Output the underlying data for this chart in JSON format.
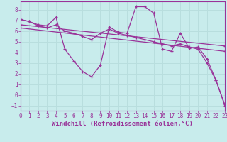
{
  "background_color": "#c8ecec",
  "line_color": "#993399",
  "grid_color": "#b8dede",
  "xlabel": "Windchill (Refroidissement éolien,°C)",
  "xlim": [
    0,
    23
  ],
  "ylim": [
    -1.5,
    8.8
  ],
  "yticks": [
    -1,
    0,
    1,
    2,
    3,
    4,
    5,
    6,
    7,
    8
  ],
  "xticks": [
    0,
    1,
    2,
    3,
    4,
    5,
    6,
    7,
    8,
    9,
    10,
    11,
    12,
    13,
    14,
    15,
    16,
    17,
    18,
    19,
    20,
    21,
    22,
    23
  ],
  "series1_x": [
    0,
    1,
    2,
    3,
    4,
    5,
    6,
    7,
    8,
    9,
    10,
    11,
    12,
    13,
    14,
    15,
    16,
    17,
    18,
    19,
    20,
    21,
    22,
    23
  ],
  "series1_y": [
    7.1,
    6.9,
    6.6,
    6.5,
    7.3,
    4.3,
    3.2,
    2.2,
    1.7,
    2.8,
    6.4,
    5.9,
    5.8,
    8.3,
    8.3,
    7.7,
    4.3,
    4.1,
    5.8,
    4.4,
    4.5,
    3.4,
    1.4,
    -0.9
  ],
  "series2_x": [
    0,
    1,
    2,
    3,
    4,
    5,
    6,
    7,
    8,
    9,
    10,
    11,
    12,
    13,
    14,
    15,
    16,
    17,
    18,
    19,
    20,
    21,
    22,
    23
  ],
  "series2_y": [
    7.1,
    6.9,
    6.5,
    6.3,
    6.6,
    6.0,
    5.8,
    5.5,
    5.2,
    5.8,
    6.2,
    5.8,
    5.6,
    5.4,
    5.2,
    5.0,
    4.8,
    4.6,
    4.8,
    4.5,
    4.3,
    3.0,
    1.4,
    -1.0
  ],
  "series3_x": [
    0,
    23
  ],
  "series3_y": [
    6.6,
    4.6
  ],
  "series4_x": [
    0,
    23
  ],
  "series4_y": [
    6.3,
    4.1
  ],
  "tick_fontsize": 5.5,
  "xlabel_fontsize": 6.5
}
